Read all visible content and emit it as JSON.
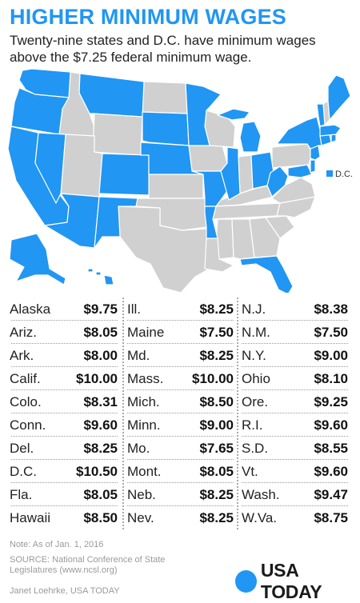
{
  "title": "HIGHER MINIMUM WAGES",
  "subtitle": "Twenty-nine states and D.C. have minimum wages above the $7.25 federal minimum wage.",
  "map": {
    "highlight_color": "#2196f3",
    "base_color": "#d0d0d0",
    "dc_label": "D.C.",
    "highlighted_states": [
      "Alaska",
      "Ariz.",
      "Ark.",
      "Calif.",
      "Colo.",
      "Conn.",
      "Del.",
      "D.C.",
      "Fla.",
      "Hawaii",
      "Ill.",
      "Maine",
      "Md.",
      "Mass.",
      "Mich.",
      "Minn.",
      "Mo.",
      "Mont.",
      "Neb.",
      "Nev.",
      "N.J.",
      "N.M.",
      "N.Y.",
      "Ohio",
      "Ore.",
      "R.I.",
      "S.D.",
      "Vt.",
      "Wash.",
      "W.Va."
    ]
  },
  "columns": [
    [
      {
        "state": "Alaska",
        "wage": "$9.75"
      },
      {
        "state": "Ariz.",
        "wage": "$8.05"
      },
      {
        "state": "Ark.",
        "wage": "$8.00"
      },
      {
        "state": "Calif.",
        "wage": "$10.00"
      },
      {
        "state": "Colo.",
        "wage": "$8.31"
      },
      {
        "state": "Conn.",
        "wage": "$9.60"
      },
      {
        "state": "Del.",
        "wage": "$8.25"
      },
      {
        "state": "D.C.",
        "wage": "$10.50"
      },
      {
        "state": "Fla.",
        "wage": "$8.05"
      },
      {
        "state": "Hawaii",
        "wage": "$8.50"
      }
    ],
    [
      {
        "state": "Ill.",
        "wage": "$8.25"
      },
      {
        "state": "Maine",
        "wage": "$7.50"
      },
      {
        "state": "Md.",
        "wage": "$8.25"
      },
      {
        "state": "Mass.",
        "wage": "$10.00"
      },
      {
        "state": "Mich.",
        "wage": "$8.50"
      },
      {
        "state": "Minn.",
        "wage": "$9.00"
      },
      {
        "state": "Mo.",
        "wage": "$7.65"
      },
      {
        "state": "Mont.",
        "wage": "$8.05"
      },
      {
        "state": "Neb.",
        "wage": "$8.25"
      },
      {
        "state": "Nev.",
        "wage": "$8.25"
      }
    ],
    [
      {
        "state": "N.J.",
        "wage": "$8.38"
      },
      {
        "state": "N.M.",
        "wage": "$7.50"
      },
      {
        "state": "N.Y.",
        "wage": "$9.00"
      },
      {
        "state": "Ohio",
        "wage": "$8.10"
      },
      {
        "state": "Ore.",
        "wage": "$9.25"
      },
      {
        "state": "R.I.",
        "wage": "$9.60"
      },
      {
        "state": "S.D.",
        "wage": "$8.55"
      },
      {
        "state": "Vt.",
        "wage": "$9.60"
      },
      {
        "state": "Wash.",
        "wage": "$9.47"
      },
      {
        "state": "W.Va.",
        "wage": "$8.75"
      }
    ]
  ],
  "note": "Note: As of Jan. 1, 2016",
  "source": "SOURCE: National Conference of State Legislatures (www.ncsl.org)",
  "credit": "Janet Loehrke, USA TODAY",
  "logo": {
    "text": "USA TODAY",
    "color": "#2196f3"
  }
}
